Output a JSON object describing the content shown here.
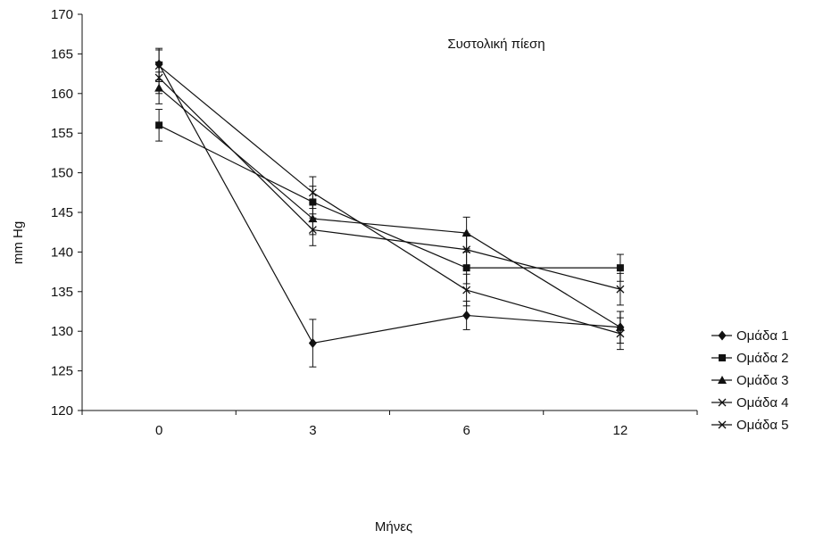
{
  "chart_data": {
    "type": "line",
    "title": "Συστολική πίεση",
    "xlabel": "Μήνες",
    "ylabel": "mm Hg",
    "categories": [
      "0",
      "3",
      "6",
      "12"
    ],
    "ylim": [
      120,
      170
    ],
    "yticks": [
      120,
      125,
      130,
      135,
      140,
      145,
      150,
      155,
      160,
      165,
      170
    ],
    "grid": false,
    "legend_position": "right",
    "series": [
      {
        "name": "Ομάδα 1",
        "marker": "diamond",
        "values": [
          163.7,
          128.5,
          132.0,
          130.5
        ],
        "error": [
          2.0,
          3.0,
          1.8,
          2.0
        ]
      },
      {
        "name": "Ομάδα 2",
        "marker": "square",
        "values": [
          156.0,
          146.3,
          138.0,
          138.0
        ],
        "error": [
          2.0,
          2.0,
          2.0,
          1.7
        ]
      },
      {
        "name": "Ομάδα 3",
        "marker": "triangle",
        "values": [
          160.7,
          144.2,
          142.4,
          130.5
        ],
        "error": [
          2.0,
          2.0,
          2.0,
          2.0
        ]
      },
      {
        "name": "Ομάδα 4",
        "marker": "x",
        "values": [
          162.0,
          142.8,
          140.3,
          135.3
        ],
        "error": [
          2.0,
          2.0,
          2.0,
          2.0
        ]
      },
      {
        "name": "Ομάδα 5",
        "marker": "x",
        "values": [
          163.5,
          147.5,
          135.2,
          129.7
        ],
        "error": [
          2.0,
          2.0,
          2.0,
          2.0
        ]
      }
    ],
    "colors": {
      "line": "#111111",
      "background": "#ffffff"
    }
  }
}
